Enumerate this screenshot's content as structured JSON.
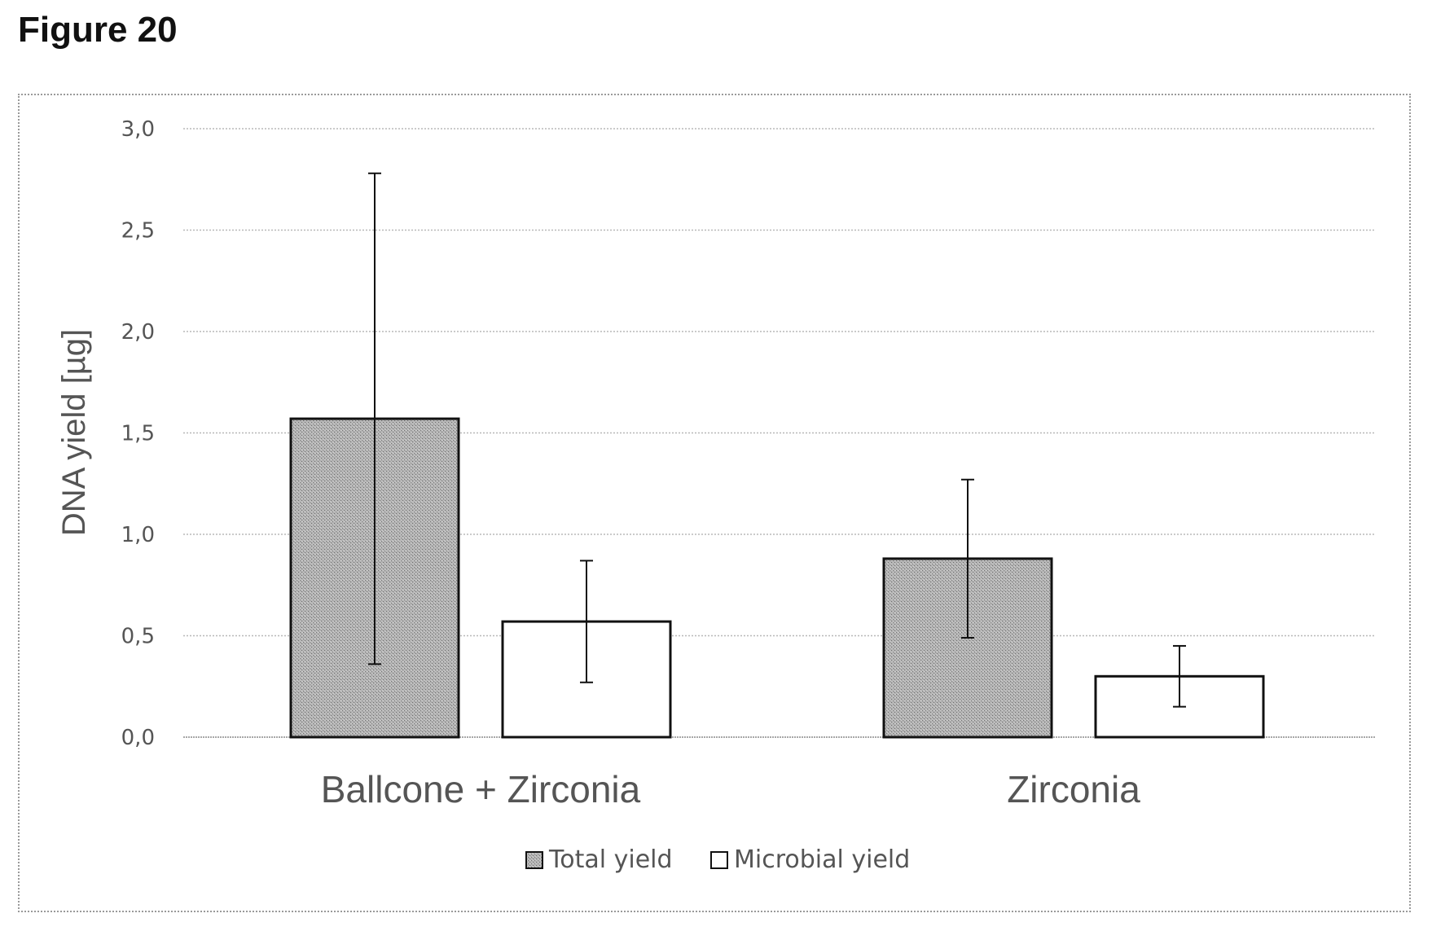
{
  "figure": {
    "title": "Figure 20"
  },
  "chart_data": {
    "type": "bar",
    "title": "",
    "xlabel": "",
    "ylabel": "DNA yield [µg]",
    "ylim": [
      0,
      3.0
    ],
    "yticks": [
      "0,0",
      "0,5",
      "1,0",
      "1,5",
      "2,0",
      "2,5",
      "3,0"
    ],
    "ytick_values": [
      0,
      0.5,
      1.0,
      1.5,
      2.0,
      2.5,
      3.0
    ],
    "grid": true,
    "legend_position": "bottom",
    "categories": [
      "Ballcone + Zirconia",
      "Zirconia"
    ],
    "series": [
      {
        "name": "Total yield",
        "fill": "#a8a8a8",
        "pattern": "stipple",
        "values": [
          1.57,
          0.88
        ],
        "error_low": [
          0.36,
          0.49
        ],
        "error_high": [
          2.78,
          1.27
        ]
      },
      {
        "name": "Microbial yield",
        "fill": "#ffffff",
        "pattern": "none",
        "values": [
          0.57,
          0.3
        ],
        "error_low": [
          0.27,
          0.15
        ],
        "error_high": [
          0.87,
          0.45
        ]
      }
    ]
  }
}
